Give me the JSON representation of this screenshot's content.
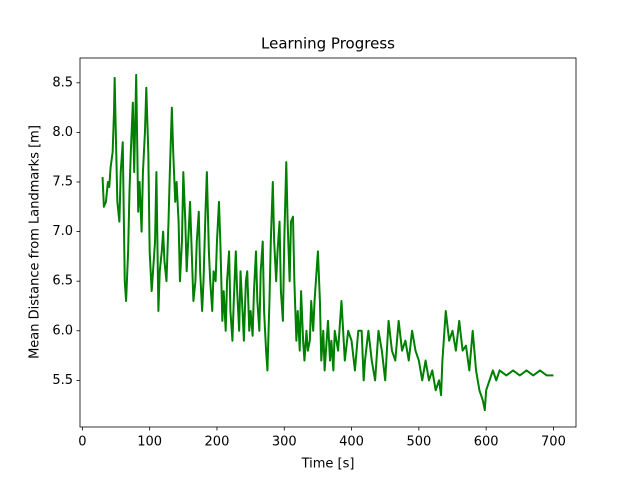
{
  "chart_data": {
    "type": "line",
    "title": "Learning Progress",
    "xlabel": "Time [s]",
    "ylabel": "Mean Distance from Landmarks [m]",
    "color": "#008000",
    "x": [
      30,
      32,
      35,
      38,
      40,
      42,
      45,
      47,
      48,
      50,
      52,
      55,
      57,
      60,
      63,
      65,
      68,
      70,
      72,
      75,
      77,
      80,
      83,
      85,
      88,
      90,
      93,
      95,
      98,
      100,
      103,
      105,
      108,
      110,
      113,
      115,
      118,
      120,
      122,
      125,
      128,
      130,
      133,
      135,
      138,
      140,
      143,
      145,
      148,
      150,
      153,
      155,
      158,
      160,
      163,
      165,
      168,
      170,
      173,
      175,
      178,
      180,
      183,
      185,
      188,
      190,
      193,
      195,
      198,
      200,
      203,
      205,
      208,
      210,
      213,
      215,
      218,
      220,
      223,
      225,
      228,
      230,
      233,
      235,
      238,
      240,
      243,
      245,
      248,
      250,
      253,
      255,
      258,
      260,
      263,
      265,
      268,
      270,
      273,
      275,
      278,
      280,
      283,
      285,
      288,
      290,
      293,
      295,
      298,
      300,
      303,
      305,
      308,
      310,
      313,
      315,
      318,
      320,
      323,
      325,
      328,
      330,
      333,
      335,
      338,
      340,
      343,
      345,
      348,
      350,
      353,
      355,
      358,
      360,
      363,
      365,
      368,
      370,
      373,
      375,
      380,
      385,
      390,
      395,
      400,
      405,
      410,
      415,
      418,
      420,
      425,
      430,
      435,
      440,
      445,
      450,
      455,
      460,
      465,
      470,
      475,
      480,
      485,
      490,
      495,
      500,
      505,
      510,
      515,
      520,
      525,
      530,
      533,
      535,
      540,
      545,
      550,
      555,
      560,
      565,
      570,
      575,
      580,
      585,
      590,
      595,
      598,
      600,
      605,
      610,
      615,
      620,
      630,
      640,
      650,
      660,
      670,
      680,
      690,
      700
    ],
    "values": [
      7.55,
      7.25,
      7.3,
      7.5,
      7.45,
      7.65,
      7.8,
      8.2,
      8.55,
      7.9,
      7.3,
      7.1,
      7.6,
      7.9,
      6.5,
      6.3,
      6.8,
      7.4,
      7.8,
      8.3,
      7.6,
      8.58,
      7.2,
      7.5,
      7.0,
      7.6,
      8.0,
      8.45,
      7.8,
      6.8,
      6.4,
      6.6,
      6.9,
      7.6,
      6.2,
      6.6,
      6.8,
      7.0,
      6.7,
      6.5,
      7.1,
      7.6,
      8.25,
      7.8,
      7.3,
      7.5,
      7.1,
      6.5,
      6.9,
      7.6,
      7.1,
      6.6,
      7.0,
      7.3,
      6.7,
      6.3,
      6.5,
      6.9,
      7.2,
      6.6,
      6.2,
      6.5,
      7.2,
      7.6,
      6.8,
      6.5,
      6.2,
      6.6,
      6.5,
      6.9,
      7.3,
      6.9,
      6.1,
      6.4,
      6.0,
      6.5,
      6.8,
      6.2,
      5.9,
      6.3,
      6.8,
      6.4,
      6.0,
      6.6,
      6.2,
      5.9,
      6.5,
      6.6,
      6.0,
      6.2,
      5.95,
      6.4,
      6.8,
      6.3,
      6.0,
      6.6,
      6.9,
      6.2,
      5.8,
      5.6,
      6.3,
      6.9,
      7.5,
      6.9,
      6.5,
      6.8,
      7.1,
      6.4,
      6.1,
      6.9,
      7.7,
      7.1,
      6.5,
      7.1,
      7.15,
      6.5,
      5.9,
      6.2,
      5.8,
      6.4,
      5.9,
      5.7,
      6.0,
      5.8,
      5.9,
      6.3,
      6.0,
      6.3,
      6.6,
      6.8,
      6.3,
      5.7,
      6.0,
      5.6,
      5.9,
      6.1,
      5.7,
      5.9,
      5.6,
      6.0,
      5.8,
      6.3,
      5.7,
      6.0,
      5.9,
      5.6,
      6.0,
      6.0,
      5.5,
      5.7,
      6.0,
      5.7,
      5.5,
      6.0,
      5.8,
      5.5,
      6.1,
      5.8,
      5.7,
      6.1,
      5.8,
      5.9,
      5.7,
      6.0,
      5.8,
      5.7,
      5.5,
      5.7,
      5.5,
      5.6,
      5.4,
      5.5,
      5.35,
      5.7,
      6.2,
      5.9,
      6.0,
      5.8,
      6.1,
      5.8,
      5.85,
      5.6,
      6.0,
      5.6,
      5.4,
      5.3,
      5.2,
      5.4,
      5.5,
      5.6,
      5.5,
      5.6,
      5.55,
      5.6,
      5.55,
      5.6,
      5.55,
      5.6,
      5.55,
      5.55
    ],
    "xlim": [
      -3.5,
      733.5
    ],
    "xticks": [
      0,
      100,
      200,
      300,
      400,
      500,
      600,
      700
    ],
    "ylim": [
      5.03,
      8.75
    ],
    "yticks": [
      5.5,
      {
        "value": 6,
        "label": "6.0"
      },
      6.5,
      {
        "value": 7,
        "label": "7.0"
      },
      7.5,
      {
        "value": 8,
        "label": "8.0"
      },
      8.5
    ]
  }
}
